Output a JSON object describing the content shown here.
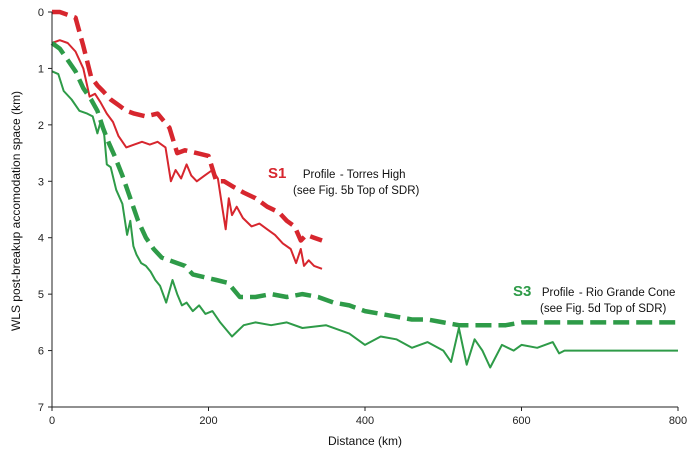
{
  "chart_data": {
    "type": "line",
    "title": "",
    "xlabel": "Distance (km)",
    "ylabel": "WLS post-breakup accomodation space (km)",
    "xlim": [
      0,
      800
    ],
    "ylim": [
      0,
      7
    ],
    "y_inverted": true,
    "x_ticks": [
      0,
      200,
      400,
      600,
      800
    ],
    "y_ticks": [
      0,
      1,
      2,
      3,
      4,
      5,
      6,
      7
    ],
    "grid": false,
    "colors": {
      "s1": "#d7262e",
      "s3": "#2e9b48"
    },
    "series": [
      {
        "name": "S1 thin",
        "style": "solid",
        "color": "#d7262e",
        "x": [
          0,
          10,
          20,
          30,
          40,
          48,
          55,
          62,
          70,
          78,
          85,
          95,
          105,
          115,
          125,
          135,
          145,
          152,
          158,
          165,
          172,
          178,
          185,
          195,
          205,
          212,
          218,
          222,
          226,
          230,
          236,
          244,
          255,
          265,
          275,
          285,
          295,
          305,
          312,
          318,
          322,
          328,
          335,
          345
        ],
        "y": [
          0.55,
          0.5,
          0.55,
          0.7,
          1.0,
          1.5,
          1.45,
          1.6,
          1.8,
          1.95,
          2.2,
          2.4,
          2.35,
          2.3,
          2.35,
          2.3,
          2.4,
          3.0,
          2.8,
          2.95,
          2.7,
          2.9,
          3.0,
          2.9,
          2.8,
          2.95,
          3.5,
          3.85,
          3.3,
          3.6,
          3.45,
          3.65,
          3.8,
          3.75,
          3.85,
          3.95,
          4.1,
          4.2,
          4.45,
          4.2,
          4.5,
          4.4,
          4.5,
          4.55
        ]
      },
      {
        "name": "S1 dashed",
        "style": "dashed",
        "color": "#d7262e",
        "x": [
          0,
          10,
          20,
          30,
          40,
          50,
          58,
          65,
          75,
          85,
          95,
          105,
          120,
          135,
          150,
          160,
          170,
          185,
          200,
          210,
          220,
          232,
          245,
          260,
          275,
          290,
          300,
          310,
          318,
          325,
          335,
          345
        ],
        "y": [
          0.0,
          0.0,
          0.05,
          0.1,
          0.6,
          1.15,
          1.3,
          1.4,
          1.55,
          1.65,
          1.75,
          1.8,
          1.85,
          1.8,
          2.05,
          2.5,
          2.45,
          2.5,
          2.55,
          3.0,
          3.0,
          3.1,
          3.2,
          3.3,
          3.45,
          3.55,
          3.7,
          3.8,
          4.05,
          3.95,
          4.0,
          4.05
        ]
      },
      {
        "name": "S3 thin",
        "style": "solid",
        "color": "#2e9b48",
        "x": [
          0,
          8,
          15,
          25,
          35,
          45,
          52,
          58,
          62,
          66,
          70,
          75,
          82,
          90,
          96,
          100,
          104,
          108,
          114,
          120,
          126,
          132,
          138,
          146,
          154,
          160,
          166,
          172,
          180,
          188,
          196,
          205,
          215,
          230,
          245,
          260,
          280,
          300,
          320,
          350,
          380,
          400,
          420,
          440,
          460,
          480,
          500,
          510,
          520,
          530,
          540,
          550,
          560,
          575,
          590,
          600,
          620,
          640,
          648,
          655,
          680,
          720,
          760,
          800
        ],
        "y": [
          1.05,
          1.1,
          1.4,
          1.55,
          1.75,
          1.8,
          1.85,
          2.15,
          1.95,
          2.05,
          2.7,
          2.75,
          3.15,
          3.4,
          3.95,
          3.7,
          4.15,
          4.3,
          4.45,
          4.5,
          4.6,
          4.75,
          4.85,
          5.15,
          4.75,
          5.0,
          5.2,
          5.15,
          5.3,
          5.2,
          5.35,
          5.3,
          5.5,
          5.75,
          5.55,
          5.5,
          5.55,
          5.5,
          5.6,
          5.55,
          5.7,
          5.9,
          5.75,
          5.8,
          5.95,
          5.85,
          6.0,
          6.2,
          5.6,
          6.25,
          5.8,
          6.0,
          6.3,
          5.9,
          6.0,
          5.9,
          5.95,
          5.85,
          6.05,
          6.0,
          6.0,
          6.0,
          6.0,
          6.0
        ]
      },
      {
        "name": "S3 dashed",
        "style": "dashed",
        "color": "#2e9b48",
        "x": [
          0,
          10,
          20,
          30,
          40,
          50,
          58,
          65,
          72,
          80,
          90,
          100,
          110,
          120,
          130,
          140,
          150,
          160,
          170,
          180,
          195,
          210,
          225,
          240,
          260,
          280,
          300,
          320,
          340,
          360,
          380,
          400,
          420,
          440,
          460,
          480,
          500,
          520,
          540,
          560,
          580,
          600,
          620,
          640,
          660,
          700,
          750,
          800
        ],
        "y": [
          0.55,
          0.65,
          0.85,
          1.05,
          1.35,
          1.55,
          1.75,
          2.05,
          2.3,
          2.55,
          2.9,
          3.3,
          3.7,
          4.0,
          4.2,
          4.35,
          4.4,
          4.45,
          4.5,
          4.65,
          4.7,
          4.75,
          4.8,
          5.05,
          5.05,
          5.0,
          5.05,
          5.0,
          5.05,
          5.15,
          5.2,
          5.3,
          5.35,
          5.4,
          5.45,
          5.45,
          5.5,
          5.55,
          5.55,
          5.55,
          5.55,
          5.5,
          5.5,
          5.5,
          5.5,
          5.5,
          5.5,
          5.5
        ]
      }
    ],
    "annotations": {
      "s1": {
        "code": "S1",
        "profile": "Profile",
        "dash": " - ",
        "name": "Torres High",
        "ref": "(see Fig. 5b  Top of SDR)"
      },
      "s3": {
        "code": "S3",
        "profile": "Profile",
        "dash": " - ",
        "name": "Rio Grande Cone",
        "ref": "(see Fig. 5d  Top of SDR)"
      }
    }
  }
}
